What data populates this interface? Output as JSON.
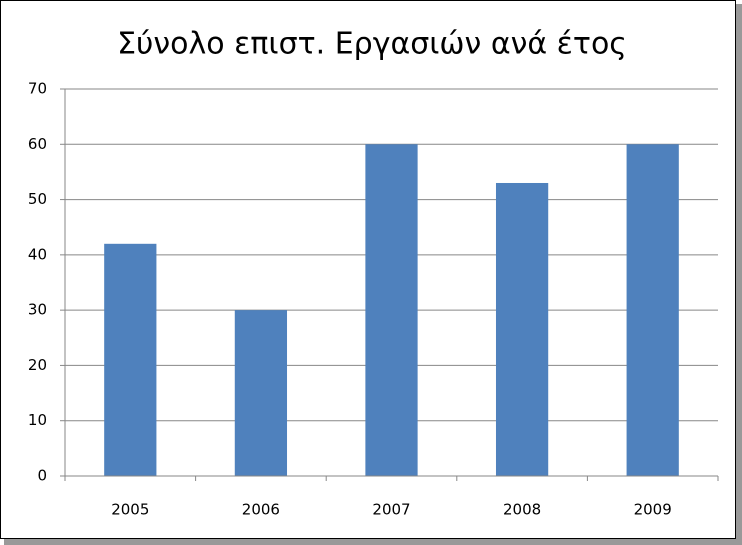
{
  "chart_data": {
    "type": "bar",
    "title": "Σύνολο επιστ. Εργασιών ανά έτος",
    "categories": [
      "2005",
      "2006",
      "2007",
      "2008",
      "2009"
    ],
    "values": [
      42,
      30,
      60,
      53,
      60
    ],
    "color": "#4f81bd",
    "ylim": [
      0,
      70
    ],
    "yticks": [
      0,
      10,
      20,
      30,
      40,
      50,
      60,
      70
    ],
    "grid": true
  }
}
